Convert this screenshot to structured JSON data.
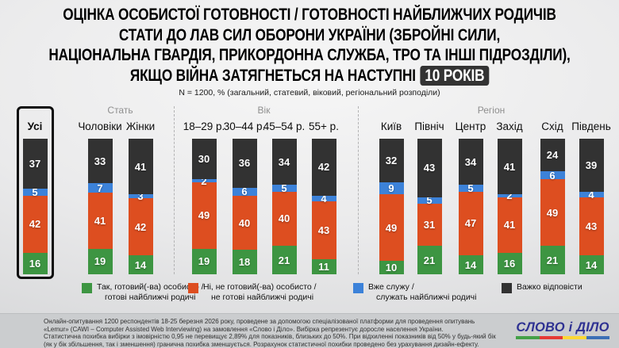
{
  "title": {
    "lines": [
      "ОЦІНКА ОСОБИСТОЇ ГОТОВНОСТІ / ГОТОВНОСТІ НАЙБЛИЖЧИХ РОДИЧІВ",
      "СТАТИ ДО ЛАВ СИЛ ОБОРОНИ УКРАЇНИ (ЗБРОЙНІ СИЛИ,",
      "НАЦІОНАЛЬНА ГВАРДІЯ, ПРИКОРДОННА СЛУЖБА, ТРО ТА ІНШІ ПІДРОЗДІЛИ),",
      "ЯКЩО ВІЙНА ЗАТЯГНЕТЬСЯ НА НАСТУПНІ"
    ],
    "badge": "10 РОКІВ"
  },
  "subtitle": "N = 1200, % (загальний, статевий, віковий, регіональний розподіли)",
  "chart_data": {
    "type": "bar",
    "stacked": true,
    "unit": "%",
    "value_scale": [
      0,
      100
    ],
    "segment_order_bottom_to_top": [
      "yes",
      "no",
      "serving",
      "hard"
    ],
    "series": [
      {
        "key": "yes",
        "name": "Так, готовий(-ва) особисто / готові найближчі родичі",
        "color": "#3D9542"
      },
      {
        "key": "no",
        "name": "Ні, не готовий(-ва) особисто / не готові найближчі родичі",
        "color": "#DD4E20"
      },
      {
        "key": "serving",
        "name": "Вже служу / служать найближчі родичі",
        "color": "#3C82D9"
      },
      {
        "key": "hard",
        "name": "Важко відповісти",
        "color": "#323232"
      }
    ],
    "groups": [
      {
        "name": "",
        "columns": [
          {
            "label": "Усі",
            "highlight": true,
            "values": [
              16,
              42,
              5,
              37
            ]
          }
        ]
      },
      {
        "name": "Стать",
        "columns": [
          {
            "label": "Чоловіки",
            "values": [
              19,
              41,
              7,
              33
            ]
          },
          {
            "label": "Жінки",
            "values": [
              14,
              42,
              3,
              41
            ]
          }
        ]
      },
      {
        "name": "Вік",
        "columns": [
          {
            "label": "18–29 р.",
            "values": [
              19,
              49,
              2,
              30
            ]
          },
          {
            "label": "30–44 р.",
            "values": [
              18,
              40,
              6,
              36
            ]
          },
          {
            "label": "45–54 р.",
            "values": [
              21,
              40,
              5,
              34
            ]
          },
          {
            "label": "55+ р.",
            "values": [
              11,
              43,
              4,
              42
            ]
          }
        ]
      },
      {
        "name": "Регіон",
        "columns": [
          {
            "label": "Київ",
            "values": [
              10,
              49,
              9,
              32
            ]
          },
          {
            "label": "Північ",
            "values": [
              21,
              31,
              5,
              43
            ]
          },
          {
            "label": "Центр",
            "values": [
              14,
              47,
              5,
              34
            ]
          },
          {
            "label": "Захід",
            "values": [
              16,
              41,
              2,
              41
            ]
          },
          {
            "label": "Схід",
            "values": [
              21,
              49,
              6,
              24
            ]
          },
          {
            "label": "Південь",
            "values": [
              14,
              43,
              4,
              39
            ]
          }
        ]
      }
    ]
  },
  "legend": {
    "items": [
      {
        "lines": [
          "Так, готовий(-ва) особисто /",
          "готові найближчі родичі"
        ]
      },
      {
        "lines": [
          "Ні, не готовий(-ва) особисто /",
          "не готові найближчі родичі"
        ]
      },
      {
        "lines": [
          "Вже служу /",
          "служать найближчі родичі"
        ]
      },
      {
        "lines": [
          "Важко відповісти"
        ]
      }
    ]
  },
  "footer": {
    "lines": [
      "Онлайн-опитування 1200 респондентів 18-25 березня 2026 року, проведене за допомогою спеціалізованої платформи для проведення опитувань",
      "«Lemur» (CAWI – Computer Assisted Web Interviewing) на замовлення «Слово і Діло». Вибірка репрезентує доросле населення України.",
      "Статистична похибка вибірки з імовірністю 0,95 не перевищує 2,89% для показників, близьких до 50%. При відхиленні показників від 50% у будь-який бік",
      "(як у бік збільшення, так і зменшення) гранична похибка зменшується. Розрахунок статистичної похибки проведено без урахування дизайн-ефекту."
    ],
    "logo_text": "СЛОВО і ДІЛО",
    "logo_color": "#2E3192",
    "logo_underline_colors": [
      "#43A047",
      "#E53935",
      "#FDD835",
      "#3B6FB5"
    ]
  }
}
